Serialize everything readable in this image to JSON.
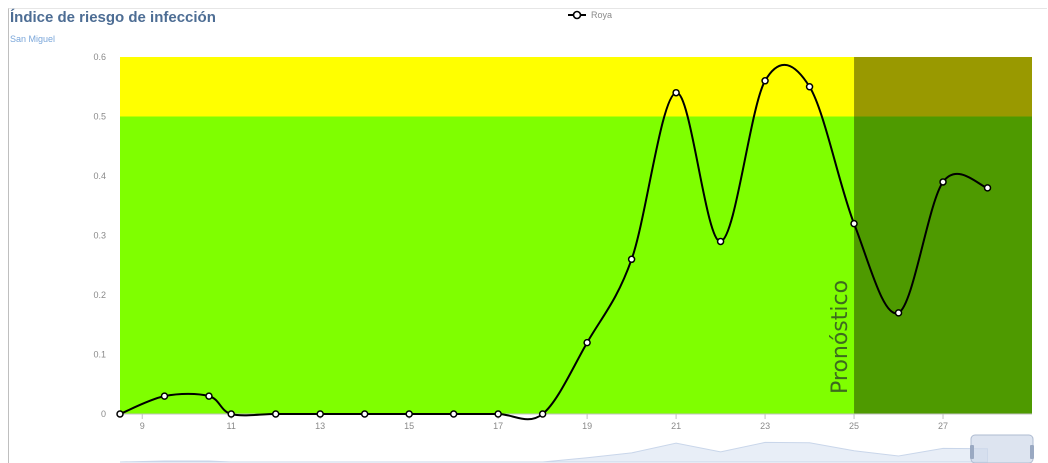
{
  "title": "Índice de riesgo de infección",
  "subtitle": "San Miguel",
  "legend": {
    "series_name": "Roya",
    "icon": "line-circle-marker-icon"
  },
  "colors": {
    "low_zone": "#7fff00",
    "high_zone": "#ffff00",
    "forecast_low": "#4e9a00",
    "forecast_high": "#999900",
    "line": "#000000",
    "marker_fill": "#ffffff",
    "axis_text": "#8a8a8a"
  },
  "forecast_label": "Pronóstico",
  "chart_data": {
    "type": "line",
    "title": "Índice de riesgo de infección",
    "subtitle": "San Miguel",
    "xlabel": "",
    "ylabel": "",
    "xlim": [
      8.5,
      29
    ],
    "ylim": [
      0,
      0.6
    ],
    "x_ticks": [
      9,
      11,
      13,
      15,
      17,
      19,
      21,
      23,
      25,
      27
    ],
    "y_ticks": [
      0,
      0.1,
      0.2,
      0.3,
      0.4,
      0.5,
      0.6
    ],
    "y_tick_labels": [
      "0",
      "0.1",
      "0.2",
      "0.3",
      "0.4",
      "0.5",
      "0.6"
    ],
    "threshold": 0.5,
    "forecast_start_x": 25,
    "legend_position": "top-center",
    "grid": false,
    "series": [
      {
        "name": "Roya",
        "x": [
          8.5,
          9.5,
          10.5,
          11,
          12,
          13,
          14,
          15,
          16,
          17,
          18,
          19,
          20,
          21,
          22,
          23,
          24,
          25,
          26,
          27,
          28
        ],
        "y": [
          0,
          0.03,
          0.03,
          0,
          0,
          0,
          0,
          0,
          0,
          0,
          0,
          0.12,
          0.26,
          0.54,
          0.29,
          0.56,
          0.55,
          0.32,
          0.17,
          0.39,
          0.38
        ]
      }
    ]
  }
}
